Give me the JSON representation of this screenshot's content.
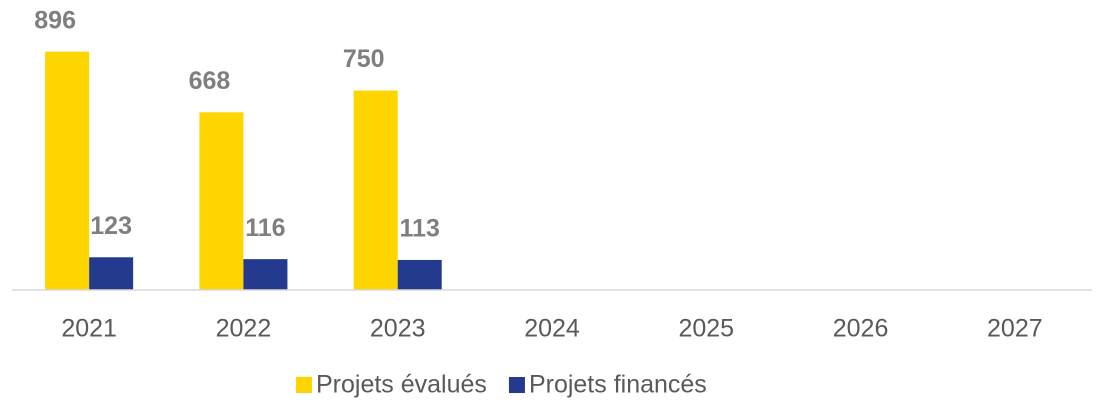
{
  "chart_data": {
    "type": "bar",
    "categories": [
      "2021",
      "2022",
      "2023",
      "2024",
      "2025",
      "2026",
      "2027"
    ],
    "series": [
      {
        "name": "Projets évalués",
        "color": "#ffd500",
        "values": [
          896,
          668,
          750,
          null,
          null,
          null,
          null
        ]
      },
      {
        "name": "Projets financés",
        "color": "#233a8f",
        "values": [
          123,
          116,
          113,
          null,
          null,
          null,
          null
        ]
      }
    ],
    "ylim": [
      0,
      1000
    ],
    "legend": "bottom"
  }
}
